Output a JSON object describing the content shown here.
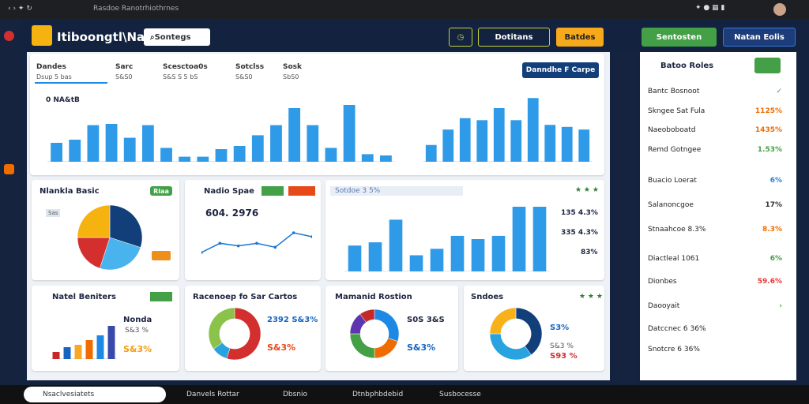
{
  "browser": {
    "tab": "Rasdoe Ranotrhiothrnes"
  },
  "header": {
    "title": "Itiboongtl\\Naa",
    "search": "Sontegs",
    "dropdown": "Dotitans",
    "orange_button": "Batdes",
    "green_button": "Sentosten",
    "blue_button": "Natan Eolis"
  },
  "summary": {
    "tabs": [
      {
        "label": "Dandes",
        "sub": "Dsup 5 bas"
      },
      {
        "label": "Sarc",
        "sub": "S&S0"
      },
      {
        "label": "Scesctoa0s",
        "sub": "S&S S 5 bS"
      },
      {
        "label": "Sotclss",
        "sub": "S&S0"
      },
      {
        "label": "Sosk",
        "sub": "SbS0"
      }
    ],
    "button": "Danndhe F Carpe",
    "chart_title": "0 NA&tB"
  },
  "cards": {
    "pie_title": "Nlankla Basic",
    "pie_tag": "Rlaa",
    "pie_legend": "Sas",
    "line_title": "Nadio Spae",
    "line_value": "604. 2976",
    "bar_filter": "Sotdoe 3 5%",
    "bar_stats": [
      "135 4.3%",
      "335 4.3%",
      "83%"
    ],
    "b1_title": "Natel Beniters",
    "b1_a": "Nonda",
    "b1_b": "S&3 %",
    "b1_c": "S&3%",
    "d1_title": "Racenoep fo Sar Cartos",
    "d1_a": "2392 S&3%",
    "d1_b": "S&3%",
    "d2_title": "Mamanid Rostion",
    "d2_a": "S0S 3&S",
    "d2_b": "S&3%",
    "d3_title": "Sndoes",
    "d3_a": "S3%",
    "d3_b": "S&3 %",
    "d3_c": "S93 %"
  },
  "right_panel": {
    "title": "Batoo Roles",
    "items": [
      {
        "label": "Bantc Bosnoot",
        "value": "✓",
        "color": "#43a047"
      },
      {
        "label": "Skngee Sat Fula",
        "value": "1125%",
        "color": "#ef6c00"
      },
      {
        "label": "Naeoboboatd",
        "value": "1435%",
        "color": "#ef6c00"
      },
      {
        "label": "Remd Gotngee",
        "value": "1.53%",
        "color": "#43a047"
      },
      {
        "label": "Buacio Loerat",
        "value": "6%",
        "color": "#1e88e5"
      },
      {
        "label": "Salanoncgoe",
        "value": "17%",
        "color": "#333"
      },
      {
        "label": "Stnaahcoe  8.3%",
        "value": "8.3%",
        "color": "#ef6c00"
      },
      {
        "label": "Diactleal   1061",
        "value": "6%",
        "color": "#43a047"
      },
      {
        "label": "Dionbes",
        "value": "59.6%",
        "color": "#e53935"
      },
      {
        "label": "Daooyait",
        "value": "›",
        "color": "#43a047"
      },
      {
        "label": "Datccnec 6 36%",
        "value": "",
        "color": "#333"
      },
      {
        "label": "Snotcre 6 36%",
        "value": "",
        "color": "#333"
      }
    ]
  },
  "taskbar": [
    "Nsaclvesiatets",
    "Danvels Rottar",
    "Dbsnio",
    "Dtnbphbdebid",
    "Susbocesse"
  ],
  "chart_data": [
    {
      "type": "bar",
      "values": [
        30,
        35,
        58,
        60,
        38,
        58,
        22,
        8,
        8,
        20,
        25,
        42,
        58,
        85,
        58,
        22,
        90,
        12,
        10
      ],
      "color": "#2f9be8",
      "ylim": [
        0,
        100
      ]
    },
    {
      "type": "bar",
      "values": [
        25,
        48,
        65,
        62,
        80,
        62,
        95,
        55,
        52,
        48
      ],
      "color": "#2f9be8",
      "ylim": [
        0,
        100
      ]
    },
    {
      "type": "pie",
      "values": [
        30,
        25,
        20,
        25
      ],
      "colors": [
        "#123f7a",
        "#49b3ee",
        "#d32f2f",
        "#f6b20f"
      ]
    },
    {
      "type": "line",
      "values": [
        18,
        32,
        28,
        32,
        26,
        48,
        42
      ],
      "color": "#1976d2",
      "ylim": [
        0,
        60
      ]
    },
    {
      "type": "bar",
      "values": [
        40,
        45,
        80,
        25,
        35,
        55,
        50,
        55,
        100,
        100
      ],
      "color": "#2f9be8",
      "ylim": [
        0,
        100
      ]
    },
    {
      "type": "bar",
      "values": [
        15,
        25,
        30,
        40,
        50,
        70
      ],
      "colors": [
        "#c62828",
        "#1565c0",
        "#f9a825",
        "#ef6c00",
        "#1e88e5",
        "#3949ab"
      ],
      "ylim": [
        0,
        100
      ]
    },
    {
      "type": "donut",
      "values": [
        55,
        10,
        35
      ],
      "colors": [
        "#d32f2f",
        "#29a3e0",
        "#8bc34a"
      ]
    },
    {
      "type": "donut",
      "values": [
        30,
        20,
        25,
        15,
        10
      ],
      "colors": [
        "#1e88e5",
        "#ef6c00",
        "#43a047",
        "#5e35b1",
        "#c62828"
      ]
    },
    {
      "type": "donut",
      "values": [
        40,
        35,
        25
      ],
      "colors": [
        "#123f7a",
        "#29a3e0",
        "#f9b11a"
      ]
    }
  ]
}
